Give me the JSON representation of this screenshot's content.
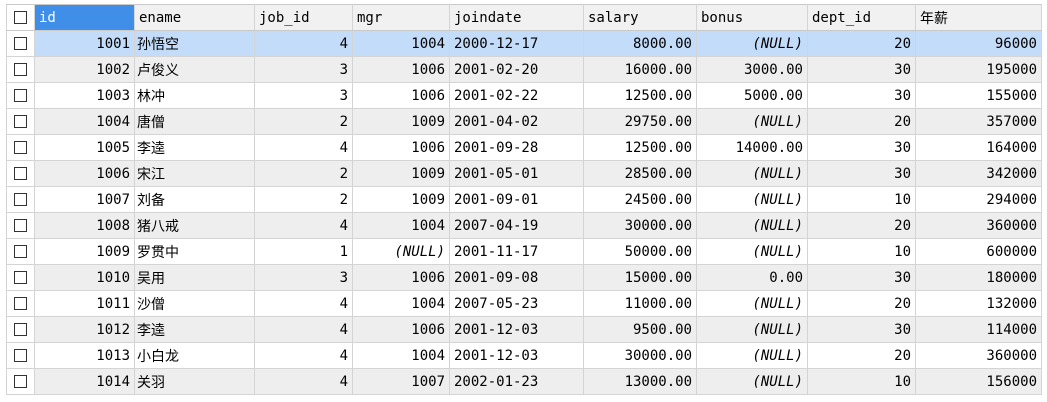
{
  "columns": [
    {
      "label": "id",
      "align": "num"
    },
    {
      "label": "ename",
      "align": "text"
    },
    {
      "label": "job_id",
      "align": "num"
    },
    {
      "label": "mgr",
      "align": "num"
    },
    {
      "label": "joindate",
      "align": "left"
    },
    {
      "label": "salary",
      "align": "num"
    },
    {
      "label": "bonus",
      "align": "num"
    },
    {
      "label": "dept_id",
      "align": "num"
    },
    {
      "label": "年薪",
      "align": "num"
    }
  ],
  "rows": [
    [
      "1001",
      "孙悟空",
      "4",
      "1004",
      "2000-12-17",
      "8000.00",
      "(NULL)",
      "20",
      "96000"
    ],
    [
      "1002",
      "卢俊义",
      "3",
      "1006",
      "2001-02-20",
      "16000.00",
      "3000.00",
      "30",
      "195000"
    ],
    [
      "1003",
      "林冲",
      "3",
      "1006",
      "2001-02-22",
      "12500.00",
      "5000.00",
      "30",
      "155000"
    ],
    [
      "1004",
      "唐僧",
      "2",
      "1009",
      "2001-04-02",
      "29750.00",
      "(NULL)",
      "20",
      "357000"
    ],
    [
      "1005",
      "李逵",
      "4",
      "1006",
      "2001-09-28",
      "12500.00",
      "14000.00",
      "30",
      "164000"
    ],
    [
      "1006",
      "宋江",
      "2",
      "1009",
      "2001-05-01",
      "28500.00",
      "(NULL)",
      "30",
      "342000"
    ],
    [
      "1007",
      "刘备",
      "2",
      "1009",
      "2001-09-01",
      "24500.00",
      "(NULL)",
      "10",
      "294000"
    ],
    [
      "1008",
      "猪八戒",
      "4",
      "1004",
      "2007-04-19",
      "30000.00",
      "(NULL)",
      "20",
      "360000"
    ],
    [
      "1009",
      "罗贯中",
      "1",
      "(NULL)",
      "2001-11-17",
      "50000.00",
      "(NULL)",
      "10",
      "600000"
    ],
    [
      "1010",
      "吴用",
      "3",
      "1006",
      "2001-09-08",
      "15000.00",
      "0.00",
      "30",
      "180000"
    ],
    [
      "1011",
      "沙僧",
      "4",
      "1004",
      "2007-05-23",
      "11000.00",
      "(NULL)",
      "20",
      "132000"
    ],
    [
      "1012",
      "李逵",
      "4",
      "1006",
      "2001-12-03",
      "9500.00",
      "(NULL)",
      "30",
      "114000"
    ],
    [
      "1013",
      "小白龙",
      "4",
      "1004",
      "2001-12-03",
      "30000.00",
      "(NULL)",
      "20",
      "360000"
    ],
    [
      "1014",
      "关羽",
      "4",
      "1007",
      "2002-01-23",
      "13000.00",
      "(NULL)",
      "10",
      "156000"
    ]
  ],
  "selected_row": 0,
  "colors": {
    "header_selected": "#3f8fe8",
    "row_selected": "#c3dcfa",
    "row_alt": "#eeeeee",
    "grid_line": "#d4d4d4"
  },
  "icons": {
    "row_select": "checkbox-icon"
  }
}
